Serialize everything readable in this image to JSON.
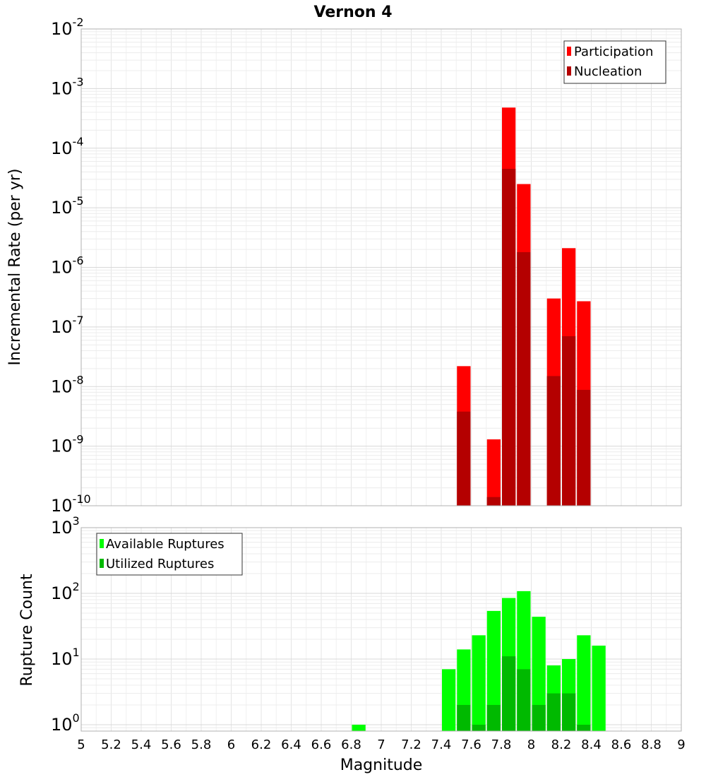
{
  "chart_data": [
    {
      "type": "bar",
      "title": "Vernon 4",
      "xlabel": "Magnitude",
      "ylabel": "Incremental Rate (per yr)",
      "yscale": "log",
      "ylim": [
        1e-10,
        0.01
      ],
      "xlim": [
        5,
        9
      ],
      "bin_width": 0.1,
      "legend_position": "top-right",
      "series": [
        {
          "name": "Participation",
          "color": "#ff0000",
          "points": [
            {
              "x": 7.55,
              "y": 2.2e-08
            },
            {
              "x": 7.75,
              "y": 1.3e-09
            },
            {
              "x": 7.85,
              "y": 0.00048
            },
            {
              "x": 7.95,
              "y": 2.5e-05
            },
            {
              "x": 8.15,
              "y": 3e-07
            },
            {
              "x": 8.25,
              "y": 2.1e-06
            },
            {
              "x": 8.35,
              "y": 2.7e-07
            }
          ]
        },
        {
          "name": "Nucleation",
          "color": "#b40000",
          "points": [
            {
              "x": 7.55,
              "y": 3.8e-09
            },
            {
              "x": 7.75,
              "y": 1.4e-10
            },
            {
              "x": 7.85,
              "y": 4.5e-05
            },
            {
              "x": 7.95,
              "y": 1.8e-06
            },
            {
              "x": 8.15,
              "y": 1.5e-08
            },
            {
              "x": 8.25,
              "y": 7e-08
            },
            {
              "x": 8.35,
              "y": 8.8e-09
            }
          ]
        }
      ]
    },
    {
      "type": "bar",
      "title": "",
      "xlabel": "Magnitude",
      "ylabel": "Rupture Count",
      "yscale": "log",
      "ylim": [
        0.8,
        1000
      ],
      "xlim": [
        5,
        9
      ],
      "bin_width": 0.1,
      "legend_position": "top-left",
      "xticks": [
        "5",
        "5.2",
        "5.4",
        "5.6",
        "5.8",
        "6",
        "6.2",
        "6.4",
        "6.6",
        "6.8",
        "7",
        "7.2",
        "7.4",
        "7.6",
        "7.8",
        "8",
        "8.2",
        "8.4",
        "8.6",
        "8.8",
        "9"
      ],
      "series": [
        {
          "name": "Available Ruptures",
          "color": "#00ff00",
          "points": [
            {
              "x": 6.85,
              "y": 1
            },
            {
              "x": 7.45,
              "y": 7
            },
            {
              "x": 7.55,
              "y": 14
            },
            {
              "x": 7.65,
              "y": 23
            },
            {
              "x": 7.75,
              "y": 54
            },
            {
              "x": 7.85,
              "y": 85
            },
            {
              "x": 7.95,
              "y": 108
            },
            {
              "x": 8.05,
              "y": 44
            },
            {
              "x": 8.15,
              "y": 8
            },
            {
              "x": 8.25,
              "y": 10
            },
            {
              "x": 8.35,
              "y": 23
            },
            {
              "x": 8.45,
              "y": 16
            }
          ]
        },
        {
          "name": "Utilized Ruptures",
          "color": "#00b900",
          "points": [
            {
              "x": 7.55,
              "y": 2
            },
            {
              "x": 7.65,
              "y": 1
            },
            {
              "x": 7.75,
              "y": 2
            },
            {
              "x": 7.85,
              "y": 11
            },
            {
              "x": 7.95,
              "y": 7
            },
            {
              "x": 8.05,
              "y": 2
            },
            {
              "x": 8.15,
              "y": 3
            },
            {
              "x": 8.25,
              "y": 3
            },
            {
              "x": 8.35,
              "y": 1
            }
          ]
        }
      ]
    }
  ]
}
